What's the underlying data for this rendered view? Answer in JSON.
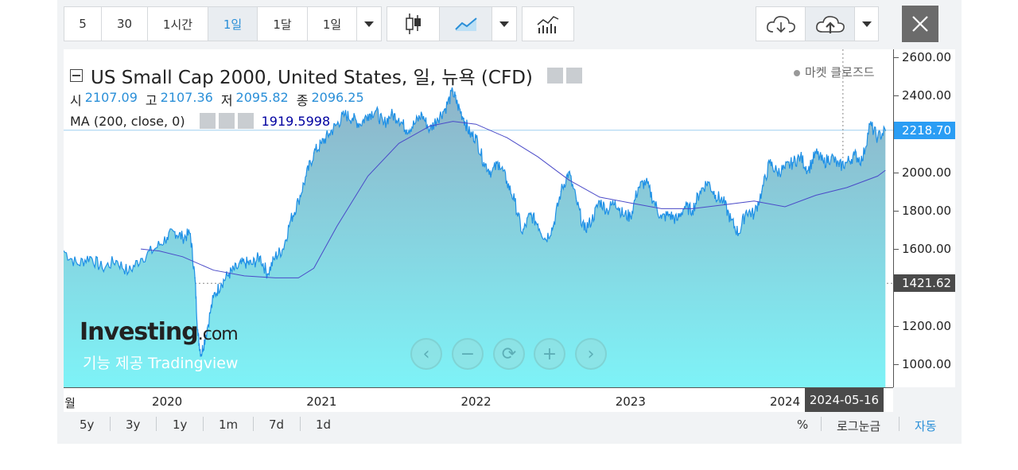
{
  "toolbar": {
    "intervals": [
      "5",
      "30",
      "1시간",
      "1일",
      "1달",
      "1일"
    ],
    "active_interval_index": 3
  },
  "legend": {
    "title": "US Small Cap 2000, United States, 일, 뉴욕 (CFD)",
    "ohlc": [
      {
        "label": "시",
        "value": "2107.09"
      },
      {
        "label": "고",
        "value": "2107.36"
      },
      {
        "label": "저",
        "value": "2095.82"
      },
      {
        "label": "종",
        "value": "2096.25"
      }
    ],
    "ma_label": "MA (200, close, 0)",
    "ma_value": "1919.5998"
  },
  "status": "마켓 클로즈드",
  "watermark": {
    "brand": "Investing",
    "suffix": ".com",
    "powered": "기능 제공 Tradingview"
  },
  "price_badge": "2218.70",
  "crosshair_badge": "1421.62",
  "date_badge": "2024-05-16",
  "x_start_label": "월",
  "range_buttons": [
    "5y",
    "3y",
    "1y",
    "1m",
    "7d",
    "1d"
  ],
  "bottom_right": {
    "percent": "%",
    "log": "로그눈금",
    "auto": "자동"
  },
  "colors": {
    "area_top": "#8fb3c8",
    "area_bottom": "#7ef3f7",
    "line": "#1e90e6",
    "ma": "#4a4ac8",
    "accent": "#2a8fd8"
  },
  "chart_data": {
    "type": "area",
    "ylim": [
      880,
      2640
    ],
    "y_ticks": [
      "2600.00",
      "2400.00",
      "2200.00",
      "2000.00",
      "1800.00",
      "1600.00",
      "1400.00",
      "1200.00",
      "1000.00"
    ],
    "y_tick_values": [
      2600,
      2400,
      2200,
      2000,
      1800,
      1600,
      1400,
      1200,
      1000
    ],
    "x_ticks": [
      "2020",
      "2021",
      "2022",
      "2023",
      "2024"
    ],
    "x_tick_values": [
      2020.0,
      2021.0,
      2022.0,
      2023.0,
      2024.0
    ],
    "xlim": [
      2019.33,
      2024.7
    ],
    "series": [
      {
        "values_x": [
          2019.33,
          2019.42,
          2019.5,
          2019.58,
          2019.67,
          2019.75,
          2019.83,
          2019.92,
          2020.0,
          2020.05,
          2020.1,
          2020.15,
          2020.18,
          2020.2,
          2020.22,
          2020.25,
          2020.3,
          2020.35,
          2020.4,
          2020.45,
          2020.5,
          2020.55,
          2020.6,
          2020.65,
          2020.7,
          2020.75,
          2020.8,
          2020.85,
          2020.9,
          2020.95,
          2021.0,
          2021.05,
          2021.1,
          2021.15,
          2021.2,
          2021.25,
          2021.3,
          2021.35,
          2021.4,
          2021.45,
          2021.5,
          2021.55,
          2021.6,
          2021.65,
          2021.7,
          2021.75,
          2021.8,
          2021.85,
          2021.88,
          2021.92,
          2021.96,
          2022.0,
          2022.05,
          2022.1,
          2022.15,
          2022.2,
          2022.25,
          2022.3,
          2022.35,
          2022.4,
          2022.45,
          2022.5,
          2022.55,
          2022.6,
          2022.65,
          2022.7,
          2022.75,
          2022.8,
          2022.85,
          2022.9,
          2022.95,
          2023.0,
          2023.05,
          2023.1,
          2023.15,
          2023.2,
          2023.25,
          2023.3,
          2023.35,
          2023.4,
          2023.45,
          2023.5,
          2023.55,
          2023.6,
          2023.65,
          2023.7,
          2023.75,
          2023.8,
          2023.85,
          2023.9,
          2023.95,
          2024.0,
          2024.05,
          2024.1,
          2024.15,
          2024.2,
          2024.25,
          2024.3,
          2024.35,
          2024.4,
          2024.45,
          2024.5,
          2024.55,
          2024.6,
          2024.65
        ],
        "values_y": [
          1590,
          1520,
          1560,
          1500,
          1540,
          1480,
          1550,
          1600,
          1660,
          1690,
          1660,
          1680,
          1450,
          1150,
          1050,
          1150,
          1350,
          1420,
          1470,
          1500,
          1530,
          1520,
          1560,
          1470,
          1560,
          1600,
          1750,
          1850,
          1980,
          2100,
          2150,
          2200,
          2250,
          2300,
          2280,
          2250,
          2300,
          2320,
          2250,
          2300,
          2280,
          2220,
          2250,
          2300,
          2220,
          2280,
          2330,
          2420,
          2350,
          2280,
          2200,
          2180,
          2050,
          2000,
          2050,
          1950,
          1850,
          1680,
          1780,
          1730,
          1650,
          1720,
          1900,
          2000,
          1850,
          1700,
          1750,
          1850,
          1800,
          1850,
          1780,
          1770,
          1920,
          1950,
          1850,
          1760,
          1780,
          1750,
          1820,
          1800,
          1900,
          1950,
          1880,
          1850,
          1750,
          1680,
          1800,
          1780,
          1900,
          2050,
          2000,
          2020,
          2050,
          2080,
          2010,
          2100,
          2050,
          2080,
          2030,
          2050,
          2090,
          2060,
          2250,
          2180,
          2218
        ]
      },
      {
        "values_x": [
          2019.83,
          2019.95,
          2020.1,
          2020.3,
          2020.5,
          2020.7,
          2020.85,
          2020.95,
          2021.1,
          2021.3,
          2021.5,
          2021.7,
          2021.85,
          2022.0,
          2022.2,
          2022.4,
          2022.6,
          2022.8,
          2023.0,
          2023.2,
          2023.4,
          2023.6,
          2023.8,
          2024.0,
          2024.2,
          2024.4,
          2024.6,
          2024.65
        ],
        "values_y": [
          1600,
          1590,
          1560,
          1490,
          1460,
          1450,
          1450,
          1500,
          1720,
          1980,
          2150,
          2240,
          2265,
          2250,
          2180,
          2080,
          1960,
          1870,
          1840,
          1810,
          1810,
          1830,
          1850,
          1820,
          1880,
          1920,
          1980,
          2010
        ]
      }
    ]
  }
}
